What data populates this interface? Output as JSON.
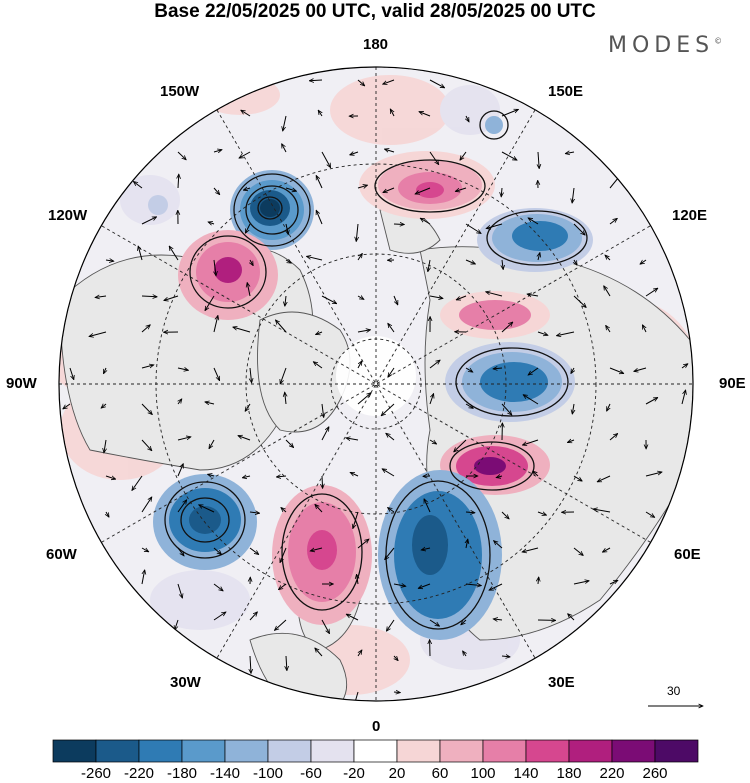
{
  "title": "Base 22/05/2025 00 UTC, valid 28/05/2025 00 UTC",
  "brand": "MODES",
  "brand_mark": "©",
  "longitude_labels": {
    "top": "180",
    "bottom": "0",
    "left": "90W",
    "right": "90E",
    "upper_left_1": "150W",
    "upper_left_2": "120W",
    "upper_right_1": "150E",
    "upper_right_2": "120E",
    "lower_left_1": "60W",
    "lower_left_2": "30W",
    "lower_right_1": "60E",
    "lower_right_2": "30E"
  },
  "reference_vector": "30",
  "colorbar": {
    "ticks": [
      "-260",
      "-220",
      "-180",
      "-140",
      "-100",
      "-60",
      "-20",
      "20",
      "60",
      "100",
      "140",
      "180",
      "220",
      "260"
    ],
    "colors": [
      "#0c3b5e",
      "#1b5a8a",
      "#2f7bb4",
      "#5a9acb",
      "#8fb3d9",
      "#c3cde6",
      "#e4e2ef",
      "#ffffff",
      "#f6d6d6",
      "#efb0bf",
      "#e67fa8",
      "#d6478f",
      "#b01f7e",
      "#7b0c75",
      "#4d0a66"
    ]
  },
  "map_colors": {
    "land": "#e8e8e8",
    "coast": "#555555",
    "grid": "#222222"
  }
}
